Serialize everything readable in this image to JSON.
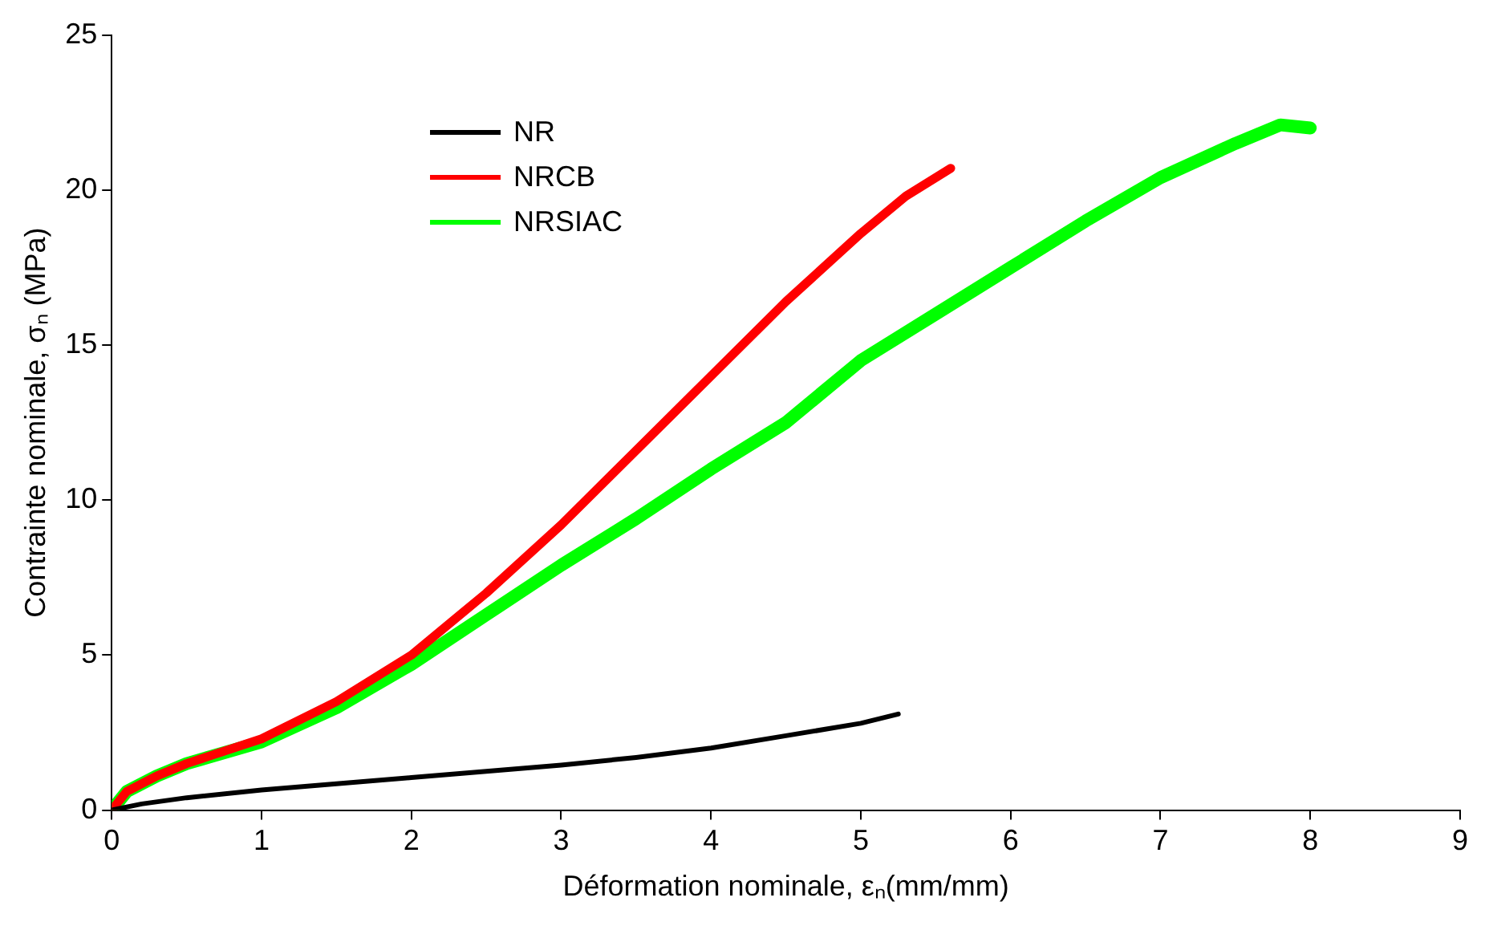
{
  "chart_data": {
    "type": "line",
    "xlabel": "Déformation nominale, εₙ(mm/mm)",
    "ylabel": "Contrainte nominale, σₙ (MPa)",
    "xlim": [
      0,
      9
    ],
    "xticks": [
      0,
      1,
      2,
      3,
      4,
      5,
      6,
      7,
      8,
      9
    ],
    "ylim": [
      0,
      25
    ],
    "yticks": [
      0,
      5,
      10,
      15,
      20,
      25
    ],
    "grid": false,
    "legend": "top left",
    "marker": "none",
    "line_style": "solid",
    "series": [
      {
        "name": "NR",
        "color": "#000000",
        "x": [
          0,
          0.2,
          0.5,
          1,
          1.5,
          2,
          2.5,
          3,
          3.5,
          4,
          4.5,
          5,
          5.25
        ],
        "values": [
          0,
          0.2,
          0.4,
          0.65,
          0.85,
          1.05,
          1.25,
          1.45,
          1.7,
          2.0,
          2.4,
          2.8,
          3.1
        ]
      },
      {
        "name": "NRCB",
        "color": "#ff0000",
        "x": [
          0,
          0.1,
          0.3,
          0.5,
          1,
          1.5,
          2,
          2.5,
          3,
          3.5,
          4,
          4.5,
          5,
          5.3,
          5.6
        ],
        "values": [
          0,
          0.6,
          1.1,
          1.5,
          2.3,
          3.5,
          5.0,
          7.0,
          9.2,
          11.6,
          14.0,
          16.4,
          18.6,
          19.8,
          20.7
        ]
      },
      {
        "name": "NRSIAC",
        "color": "#00ff00",
        "x": [
          0,
          0.1,
          0.3,
          0.5,
          1,
          1.5,
          2,
          2.5,
          3,
          3.5,
          4,
          4.5,
          5,
          5.5,
          6,
          6.5,
          7,
          7.5,
          7.8,
          8
        ],
        "values": [
          0,
          0.6,
          1.1,
          1.5,
          2.2,
          3.3,
          4.7,
          6.3,
          7.9,
          9.4,
          11.0,
          12.5,
          14.5,
          16.0,
          17.5,
          19.0,
          20.4,
          21.5,
          22.1,
          22.0
        ]
      }
    ]
  }
}
